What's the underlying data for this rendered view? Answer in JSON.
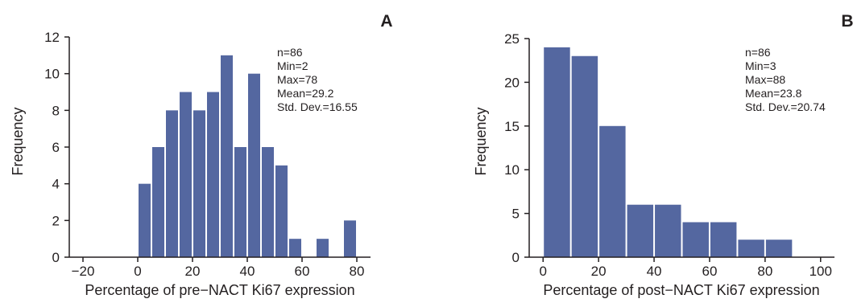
{
  "chart_data": [
    {
      "panel": "A",
      "type": "bar",
      "xlabel": "Percentage of pre-NACT Ki67 expression",
      "ylabel": "Frequency",
      "xlim": [
        -25,
        85
      ],
      "ylim": [
        0,
        12
      ],
      "xticks": [
        -20,
        0,
        20,
        40,
        60,
        80
      ],
      "yticks": [
        0,
        2,
        4,
        6,
        8,
        10,
        12
      ],
      "bin_width": 5,
      "bins": [
        {
          "start": 0,
          "end": 5,
          "value": 4
        },
        {
          "start": 5,
          "end": 10,
          "value": 6
        },
        {
          "start": 10,
          "end": 15,
          "value": 8
        },
        {
          "start": 15,
          "end": 20,
          "value": 9
        },
        {
          "start": 20,
          "end": 25,
          "value": 8
        },
        {
          "start": 25,
          "end": 30,
          "value": 9
        },
        {
          "start": 30,
          "end": 35,
          "value": 11
        },
        {
          "start": 35,
          "end": 40,
          "value": 6
        },
        {
          "start": 40,
          "end": 45,
          "value": 10
        },
        {
          "start": 45,
          "end": 50,
          "value": 6
        },
        {
          "start": 50,
          "end": 55,
          "value": 5
        },
        {
          "start": 55,
          "end": 60,
          "value": 1
        },
        {
          "start": 60,
          "end": 65,
          "value": 0
        },
        {
          "start": 65,
          "end": 70,
          "value": 1
        },
        {
          "start": 70,
          "end": 75,
          "value": 0
        },
        {
          "start": 75,
          "end": 80,
          "value": 2
        }
      ],
      "stats": [
        "n=86",
        "Min=2",
        "Max=78",
        "Mean=29.2",
        "Std. Dev.=16.55"
      ],
      "bar_color": "#5467a0"
    },
    {
      "panel": "B",
      "type": "bar",
      "xlabel": "Percentage of post-NACT Ki67 expression",
      "ylabel": "Frequency",
      "xlim": [
        -5,
        105
      ],
      "ylim": [
        0,
        25
      ],
      "xticks": [
        0,
        20,
        40,
        60,
        80,
        100
      ],
      "yticks": [
        0,
        5,
        10,
        15,
        20,
        25
      ],
      "bin_width": 10,
      "bins": [
        {
          "start": 0,
          "end": 10,
          "value": 24
        },
        {
          "start": 10,
          "end": 20,
          "value": 23
        },
        {
          "start": 20,
          "end": 30,
          "value": 15
        },
        {
          "start": 30,
          "end": 40,
          "value": 6
        },
        {
          "start": 40,
          "end": 50,
          "value": 6
        },
        {
          "start": 50,
          "end": 60,
          "value": 4
        },
        {
          "start": 60,
          "end": 70,
          "value": 4
        },
        {
          "start": 70,
          "end": 80,
          "value": 2
        },
        {
          "start": 80,
          "end": 90,
          "value": 2
        }
      ],
      "stats": [
        "n=86",
        "Min=3",
        "Max=88",
        "Mean=23.8",
        "Std. Dev.=20.74"
      ],
      "bar_color": "#5467a0"
    }
  ]
}
